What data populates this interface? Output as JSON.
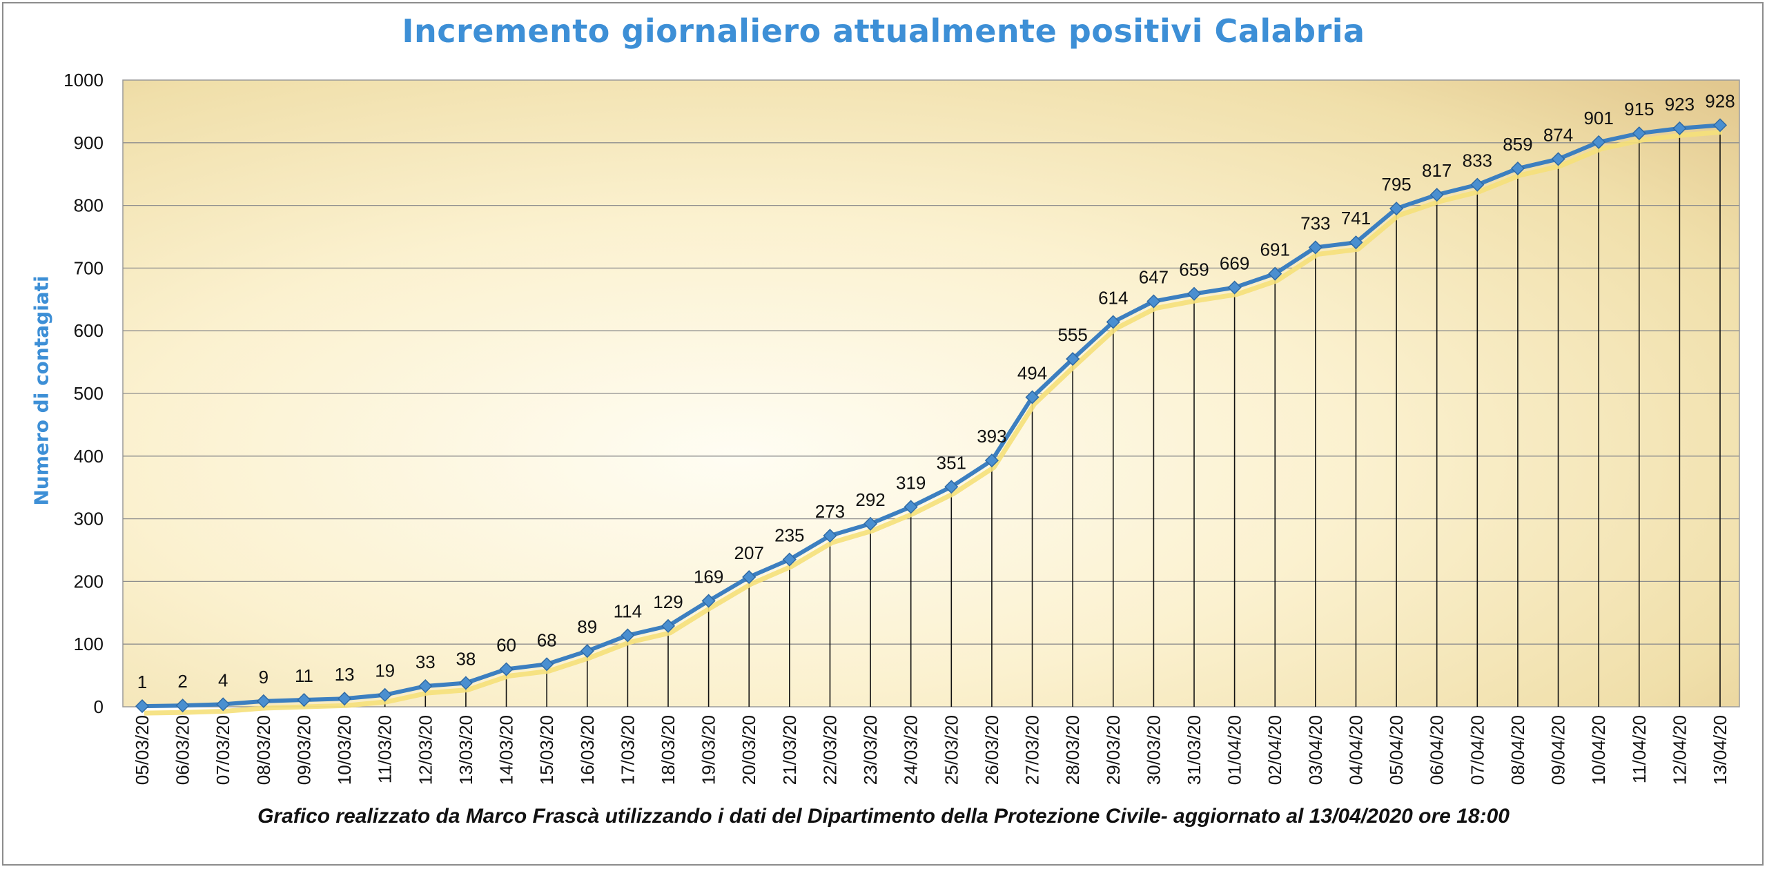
{
  "chart_data": {
    "type": "line",
    "title": "Incremento giornaliero attualmente positivi Calabria",
    "ylabel": "Numero di contagiati",
    "xlabel": "",
    "ylim": [
      0,
      1000
    ],
    "y_ticks": [
      0,
      100,
      200,
      300,
      400,
      500,
      600,
      700,
      800,
      900,
      1000
    ],
    "grid": "horizontal",
    "drop_lines": true,
    "categories": [
      "05/03/20",
      "06/03/20",
      "07/03/20",
      "08/03/20",
      "09/03/20",
      "10/03/20",
      "11/03/20",
      "12/03/20",
      "13/03/20",
      "14/03/20",
      "15/03/20",
      "16/03/20",
      "17/03/20",
      "18/03/20",
      "19/03/20",
      "20/03/20",
      "21/03/20",
      "22/03/20",
      "23/03/20",
      "24/03/20",
      "25/03/20",
      "26/03/20",
      "27/03/20",
      "28/03/20",
      "29/03/20",
      "30/03/20",
      "31/03/20",
      "01/04/20",
      "02/04/20",
      "03/04/20",
      "04/04/20",
      "05/04/20",
      "06/04/20",
      "07/04/20",
      "08/04/20",
      "09/04/20",
      "10/04/20",
      "11/04/20",
      "12/04/20",
      "13/04/20"
    ],
    "series": [
      {
        "values": [
          1,
          2,
          4,
          9,
          11,
          13,
          19,
          33,
          38,
          60,
          68,
          89,
          114,
          129,
          169,
          207,
          235,
          273,
          292,
          319,
          351,
          393,
          494,
          555,
          614,
          647,
          659,
          669,
          691,
          733,
          741,
          795,
          817,
          833,
          859,
          874,
          901,
          915,
          923,
          928
        ],
        "color": "#3c7fc0",
        "marker": "diamond"
      }
    ],
    "colors": {
      "line": "#3c7fc0",
      "marker": "#4a8fd0",
      "shadow": "#f5e07a",
      "title": "#3d8fd6",
      "plot_bg_light": "#fdf8e6",
      "plot_bg_dark": "#e6d09a"
    }
  },
  "footer": {
    "note": "Grafico  realizzato da Marco Frascà  utilizzando i dati del Dipartimento  della Protezione Civile- aggiornato al 13/04/2020 ore 18:00"
  }
}
